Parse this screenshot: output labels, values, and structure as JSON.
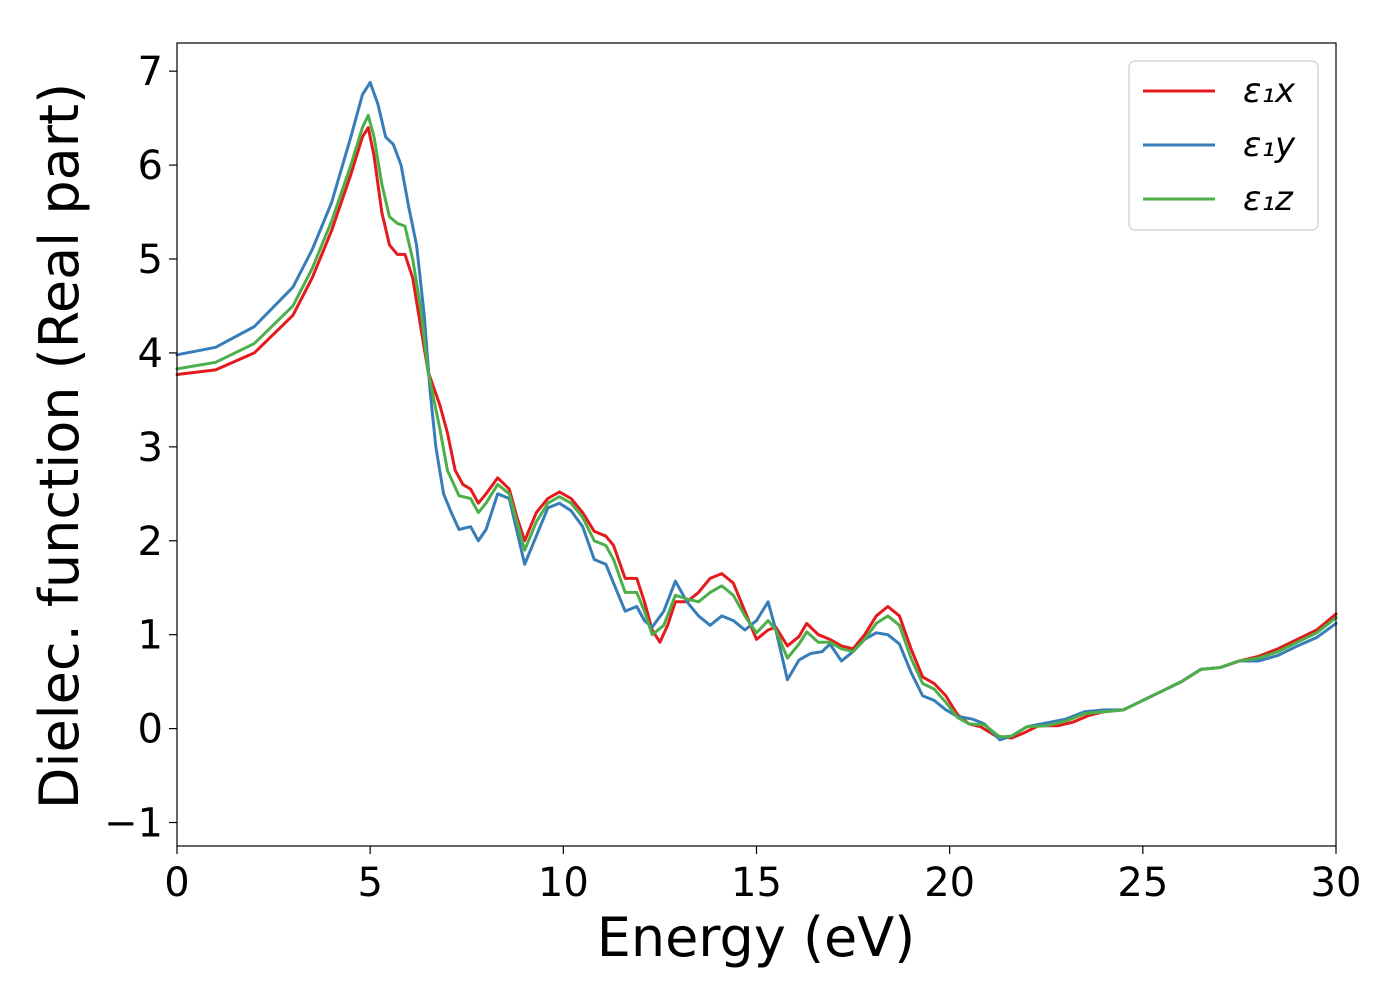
{
  "chart_data": {
    "type": "line",
    "title": "",
    "xlabel": "Energy (eV)",
    "ylabel": "Dielec. function (Real part)",
    "xlim": [
      0,
      30
    ],
    "ylim": [
      -1.25,
      7.3
    ],
    "xticks": [
      0,
      5,
      10,
      15,
      20,
      25,
      30
    ],
    "yticks": [
      -1,
      0,
      1,
      2,
      3,
      4,
      5,
      6,
      7
    ],
    "xtick_labels": [
      "0",
      "5",
      "10",
      "15",
      "20",
      "25",
      "30"
    ],
    "ytick_labels": [
      "−1",
      "0",
      "1",
      "2",
      "3",
      "4",
      "5",
      "6",
      "7"
    ],
    "grid": false,
    "legend_position": "top-right",
    "series": [
      {
        "name": "ε₁x",
        "color": "#e41a1c",
        "points": [
          [
            0,
            3.77
          ],
          [
            1,
            3.82
          ],
          [
            2,
            4.0
          ],
          [
            3,
            4.4
          ],
          [
            3.5,
            4.8
          ],
          [
            4,
            5.3
          ],
          [
            4.5,
            5.9
          ],
          [
            4.8,
            6.3
          ],
          [
            4.95,
            6.4
          ],
          [
            5.1,
            6.1
          ],
          [
            5.3,
            5.5
          ],
          [
            5.5,
            5.15
          ],
          [
            5.7,
            5.05
          ],
          [
            5.9,
            5.05
          ],
          [
            6.1,
            4.8
          ],
          [
            6.3,
            4.3
          ],
          [
            6.5,
            3.8
          ],
          [
            6.8,
            3.45
          ],
          [
            7.0,
            3.15
          ],
          [
            7.2,
            2.75
          ],
          [
            7.4,
            2.6
          ],
          [
            7.6,
            2.55
          ],
          [
            7.8,
            2.4
          ],
          [
            8.0,
            2.5
          ],
          [
            8.3,
            2.67
          ],
          [
            8.6,
            2.55
          ],
          [
            8.8,
            2.25
          ],
          [
            9.0,
            2.0
          ],
          [
            9.3,
            2.3
          ],
          [
            9.6,
            2.45
          ],
          [
            9.9,
            2.52
          ],
          [
            10.2,
            2.45
          ],
          [
            10.5,
            2.3
          ],
          [
            10.8,
            2.1
          ],
          [
            11.1,
            2.05
          ],
          [
            11.3,
            1.95
          ],
          [
            11.6,
            1.6
          ],
          [
            11.9,
            1.6
          ],
          [
            12.1,
            1.35
          ],
          [
            12.3,
            1.05
          ],
          [
            12.5,
            0.92
          ],
          [
            12.7,
            1.1
          ],
          [
            12.9,
            1.35
          ],
          [
            13.2,
            1.35
          ],
          [
            13.5,
            1.45
          ],
          [
            13.8,
            1.6
          ],
          [
            14.1,
            1.65
          ],
          [
            14.4,
            1.55
          ],
          [
            14.7,
            1.25
          ],
          [
            15.0,
            0.95
          ],
          [
            15.3,
            1.05
          ],
          [
            15.5,
            1.08
          ],
          [
            15.8,
            0.88
          ],
          [
            16.1,
            0.98
          ],
          [
            16.3,
            1.12
          ],
          [
            16.6,
            1.0
          ],
          [
            16.9,
            0.95
          ],
          [
            17.2,
            0.88
          ],
          [
            17.5,
            0.85
          ],
          [
            17.8,
            1.0
          ],
          [
            18.1,
            1.2
          ],
          [
            18.4,
            1.3
          ],
          [
            18.7,
            1.2
          ],
          [
            19.0,
            0.85
          ],
          [
            19.3,
            0.55
          ],
          [
            19.6,
            0.48
          ],
          [
            19.9,
            0.35
          ],
          [
            20.2,
            0.15
          ],
          [
            20.5,
            0.05
          ],
          [
            20.8,
            0.02
          ],
          [
            21.2,
            -0.08
          ],
          [
            21.6,
            -0.1
          ],
          [
            21.9,
            -0.05
          ],
          [
            22.3,
            0.03
          ],
          [
            22.8,
            0.03
          ],
          [
            23.2,
            0.07
          ],
          [
            23.6,
            0.14
          ],
          [
            24.0,
            0.18
          ],
          [
            24.5,
            0.2
          ],
          [
            25.0,
            0.3
          ],
          [
            25.5,
            0.4
          ],
          [
            26.0,
            0.5
          ],
          [
            26.5,
            0.63
          ],
          [
            27.0,
            0.65
          ],
          [
            27.5,
            0.72
          ],
          [
            28.0,
            0.77
          ],
          [
            28.5,
            0.85
          ],
          [
            29.0,
            0.95
          ],
          [
            29.5,
            1.05
          ],
          [
            30.0,
            1.22
          ]
        ]
      },
      {
        "name": "ε₁y",
        "color": "#377eb8",
        "points": [
          [
            0,
            3.98
          ],
          [
            1,
            4.06
          ],
          [
            2,
            4.28
          ],
          [
            3,
            4.7
          ],
          [
            3.5,
            5.1
          ],
          [
            4,
            5.6
          ],
          [
            4.5,
            6.3
          ],
          [
            4.8,
            6.75
          ],
          [
            5.0,
            6.88
          ],
          [
            5.2,
            6.65
          ],
          [
            5.4,
            6.3
          ],
          [
            5.6,
            6.22
          ],
          [
            5.8,
            6.0
          ],
          [
            6.0,
            5.55
          ],
          [
            6.2,
            5.15
          ],
          [
            6.4,
            4.4
          ],
          [
            6.55,
            3.6
          ],
          [
            6.7,
            3.0
          ],
          [
            6.9,
            2.5
          ],
          [
            7.1,
            2.3
          ],
          [
            7.3,
            2.12
          ],
          [
            7.6,
            2.15
          ],
          [
            7.8,
            2.0
          ],
          [
            8.0,
            2.12
          ],
          [
            8.3,
            2.5
          ],
          [
            8.6,
            2.45
          ],
          [
            8.8,
            2.1
          ],
          [
            9.0,
            1.75
          ],
          [
            9.3,
            2.05
          ],
          [
            9.6,
            2.35
          ],
          [
            9.9,
            2.4
          ],
          [
            10.2,
            2.32
          ],
          [
            10.5,
            2.15
          ],
          [
            10.8,
            1.8
          ],
          [
            11.1,
            1.75
          ],
          [
            11.3,
            1.55
          ],
          [
            11.6,
            1.25
          ],
          [
            11.9,
            1.3
          ],
          [
            12.1,
            1.15
          ],
          [
            12.3,
            1.08
          ],
          [
            12.6,
            1.25
          ],
          [
            12.9,
            1.57
          ],
          [
            13.2,
            1.35
          ],
          [
            13.5,
            1.2
          ],
          [
            13.8,
            1.1
          ],
          [
            14.1,
            1.2
          ],
          [
            14.4,
            1.15
          ],
          [
            14.7,
            1.05
          ],
          [
            15.0,
            1.15
          ],
          [
            15.3,
            1.35
          ],
          [
            15.5,
            1.05
          ],
          [
            15.8,
            0.52
          ],
          [
            16.1,
            0.73
          ],
          [
            16.4,
            0.8
          ],
          [
            16.7,
            0.82
          ],
          [
            16.9,
            0.9
          ],
          [
            17.2,
            0.72
          ],
          [
            17.5,
            0.82
          ],
          [
            17.8,
            0.95
          ],
          [
            18.1,
            1.02
          ],
          [
            18.4,
            1.0
          ],
          [
            18.7,
            0.9
          ],
          [
            19.0,
            0.6
          ],
          [
            19.3,
            0.35
          ],
          [
            19.6,
            0.3
          ],
          [
            19.9,
            0.2
          ],
          [
            20.2,
            0.13
          ],
          [
            20.6,
            0.1
          ],
          [
            20.9,
            0.05
          ],
          [
            21.3,
            -0.12
          ],
          [
            21.6,
            -0.08
          ],
          [
            22.0,
            0.02
          ],
          [
            22.5,
            0.06
          ],
          [
            23.0,
            0.1
          ],
          [
            23.5,
            0.18
          ],
          [
            24.0,
            0.2
          ],
          [
            24.5,
            0.2
          ],
          [
            25.0,
            0.3
          ],
          [
            25.5,
            0.4
          ],
          [
            26.0,
            0.5
          ],
          [
            26.5,
            0.63
          ],
          [
            27.0,
            0.65
          ],
          [
            27.5,
            0.72
          ],
          [
            28.0,
            0.72
          ],
          [
            28.5,
            0.78
          ],
          [
            29.0,
            0.88
          ],
          [
            29.5,
            0.97
          ],
          [
            30.0,
            1.12
          ]
        ]
      },
      {
        "name": "ε₁z",
        "color": "#4daf4a",
        "points": [
          [
            0,
            3.83
          ],
          [
            1,
            3.9
          ],
          [
            2,
            4.1
          ],
          [
            3,
            4.5
          ],
          [
            3.5,
            4.9
          ],
          [
            4,
            5.4
          ],
          [
            4.5,
            6.0
          ],
          [
            4.8,
            6.4
          ],
          [
            4.95,
            6.53
          ],
          [
            5.1,
            6.3
          ],
          [
            5.3,
            5.8
          ],
          [
            5.5,
            5.45
          ],
          [
            5.7,
            5.38
          ],
          [
            5.9,
            5.35
          ],
          [
            6.1,
            5.0
          ],
          [
            6.3,
            4.5
          ],
          [
            6.5,
            3.8
          ],
          [
            6.8,
            3.2
          ],
          [
            7.0,
            2.75
          ],
          [
            7.3,
            2.48
          ],
          [
            7.6,
            2.45
          ],
          [
            7.8,
            2.3
          ],
          [
            8.0,
            2.4
          ],
          [
            8.3,
            2.6
          ],
          [
            8.6,
            2.5
          ],
          [
            8.8,
            2.2
          ],
          [
            9.0,
            1.9
          ],
          [
            9.3,
            2.2
          ],
          [
            9.6,
            2.4
          ],
          [
            9.9,
            2.47
          ],
          [
            10.2,
            2.4
          ],
          [
            10.5,
            2.25
          ],
          [
            10.8,
            2.0
          ],
          [
            11.1,
            1.95
          ],
          [
            11.3,
            1.8
          ],
          [
            11.6,
            1.45
          ],
          [
            11.9,
            1.45
          ],
          [
            12.1,
            1.25
          ],
          [
            12.3,
            1.0
          ],
          [
            12.6,
            1.1
          ],
          [
            12.9,
            1.42
          ],
          [
            13.2,
            1.38
          ],
          [
            13.5,
            1.35
          ],
          [
            13.8,
            1.45
          ],
          [
            14.1,
            1.52
          ],
          [
            14.4,
            1.42
          ],
          [
            14.7,
            1.2
          ],
          [
            15.0,
            1.02
          ],
          [
            15.3,
            1.15
          ],
          [
            15.5,
            1.05
          ],
          [
            15.8,
            0.75
          ],
          [
            16.1,
            0.9
          ],
          [
            16.3,
            1.03
          ],
          [
            16.6,
            0.92
          ],
          [
            16.9,
            0.92
          ],
          [
            17.2,
            0.85
          ],
          [
            17.5,
            0.82
          ],
          [
            17.8,
            0.95
          ],
          [
            18.1,
            1.12
          ],
          [
            18.4,
            1.2
          ],
          [
            18.7,
            1.1
          ],
          [
            19.0,
            0.75
          ],
          [
            19.3,
            0.48
          ],
          [
            19.6,
            0.42
          ],
          [
            19.9,
            0.28
          ],
          [
            20.2,
            0.12
          ],
          [
            20.5,
            0.05
          ],
          [
            20.9,
            0.04
          ],
          [
            21.3,
            -0.09
          ],
          [
            21.6,
            -0.08
          ],
          [
            22.0,
            0.02
          ],
          [
            22.5,
            0.03
          ],
          [
            23.0,
            0.08
          ],
          [
            23.5,
            0.16
          ],
          [
            24.0,
            0.18
          ],
          [
            24.5,
            0.2
          ],
          [
            25.0,
            0.3
          ],
          [
            25.5,
            0.4
          ],
          [
            26.0,
            0.5
          ],
          [
            26.5,
            0.63
          ],
          [
            27.0,
            0.65
          ],
          [
            27.5,
            0.72
          ],
          [
            28.0,
            0.75
          ],
          [
            28.5,
            0.82
          ],
          [
            29.0,
            0.92
          ],
          [
            29.5,
            1.02
          ],
          [
            30.0,
            1.18
          ]
        ]
      }
    ]
  }
}
